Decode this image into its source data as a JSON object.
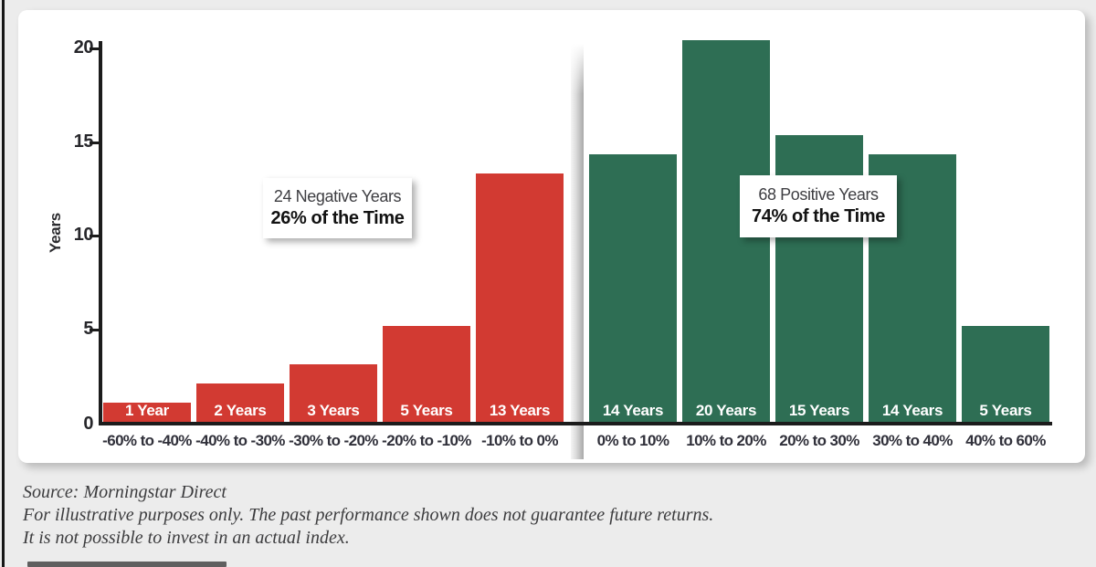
{
  "chart_data": {
    "type": "bar",
    "title": "",
    "xlabel": "",
    "ylabel": "Years",
    "ylim": [
      0,
      20
    ],
    "yticks": [
      0,
      5,
      10,
      15,
      20
    ],
    "grid": false,
    "legend": "none",
    "bars": [
      {
        "category": "-60% to -40%",
        "label": "1 Year",
        "value": 1,
        "group": "negative"
      },
      {
        "category": "-40% to -30%",
        "label": "2 Years",
        "value": 2,
        "group": "negative"
      },
      {
        "category": "-30% to -20%",
        "label": "3 Years",
        "value": 3,
        "group": "negative"
      },
      {
        "category": "-20% to -10%",
        "label": "5 Years",
        "value": 5,
        "group": "negative"
      },
      {
        "category": "-10% to 0%",
        "label": "13 Years",
        "value": 13,
        "group": "negative"
      },
      {
        "category": "0% to 10%",
        "label": "14 Years",
        "value": 14,
        "group": "positive"
      },
      {
        "category": "10% to 20%",
        "label": "20 Years",
        "value": 20,
        "group": "positive"
      },
      {
        "category": "20% to 30%",
        "label": "15 Years",
        "value": 15,
        "group": "positive"
      },
      {
        "category": "30% to 40%",
        "label": "14 Years",
        "value": 14,
        "group": "positive"
      },
      {
        "category": "40% to 60%",
        "label": "5 Years",
        "value": 5,
        "group": "positive"
      }
    ],
    "colors": {
      "negative": "#d23a32",
      "positive": "#2e6e54"
    },
    "annotations": [
      {
        "line1": "24 Negative Years",
        "line2": "26% of the Time",
        "side": "negative"
      },
      {
        "line1": "68 Positive Years",
        "line2": "74% of the Time",
        "side": "positive"
      }
    ]
  },
  "footnote": {
    "lines": [
      "Source: Morningstar Direct",
      "For illustrative purposes only. The past performance shown does not guarantee future returns.",
      "It is not possible to invest in an actual index."
    ]
  }
}
